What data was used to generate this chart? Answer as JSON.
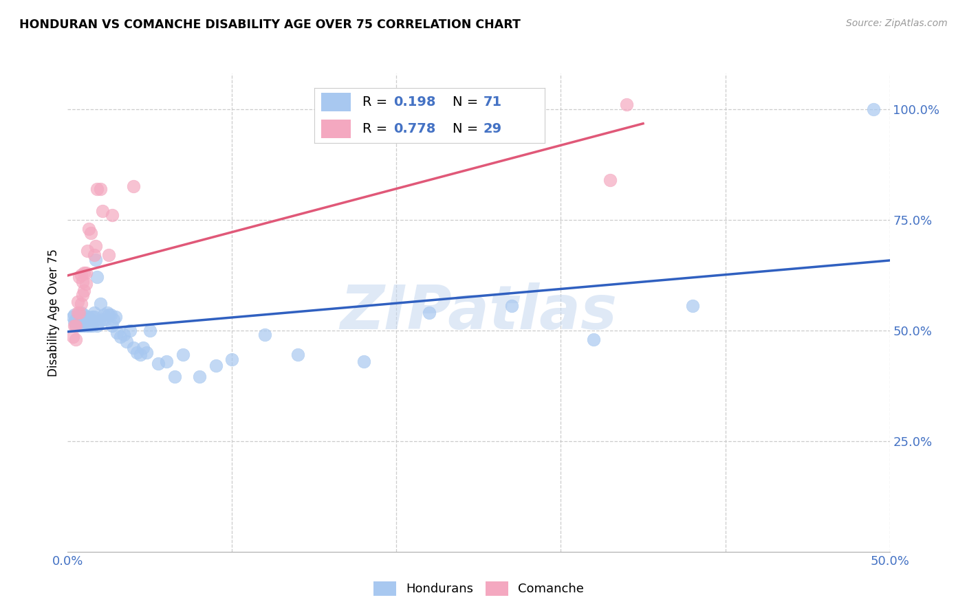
{
  "title": "HONDURAN VS COMANCHE DISABILITY AGE OVER 75 CORRELATION CHART",
  "source": "Source: ZipAtlas.com",
  "ylabel": "Disability Age Over 75",
  "xlim": [
    0.0,
    0.5
  ],
  "ylim": [
    0.0,
    1.08
  ],
  "color_honduran": "#a8c8f0",
  "color_comanche": "#f4a8c0",
  "color_line_honduran": "#3060c0",
  "color_line_comanche": "#e05878",
  "color_grid": "#cccccc",
  "color_tick": "#4472c4",
  "watermark": "ZIPatlas",
  "legend_r1": "0.198",
  "legend_n1": "71",
  "legend_r2": "0.778",
  "legend_n2": "29",
  "honduran_x": [
    0.003,
    0.004,
    0.004,
    0.005,
    0.005,
    0.006,
    0.006,
    0.007,
    0.007,
    0.007,
    0.008,
    0.008,
    0.008,
    0.009,
    0.009,
    0.009,
    0.01,
    0.01,
    0.01,
    0.011,
    0.011,
    0.012,
    0.012,
    0.013,
    0.013,
    0.014,
    0.014,
    0.015,
    0.015,
    0.016,
    0.016,
    0.017,
    0.018,
    0.018,
    0.019,
    0.02,
    0.021,
    0.022,
    0.023,
    0.024,
    0.025,
    0.026,
    0.027,
    0.028,
    0.029,
    0.03,
    0.032,
    0.034,
    0.036,
    0.038,
    0.04,
    0.042,
    0.044,
    0.046,
    0.048,
    0.05,
    0.055,
    0.06,
    0.065,
    0.07,
    0.08,
    0.09,
    0.1,
    0.12,
    0.14,
    0.18,
    0.22,
    0.27,
    0.32,
    0.38,
    0.49
  ],
  "honduran_y": [
    0.53,
    0.52,
    0.535,
    0.51,
    0.525,
    0.515,
    0.53,
    0.52,
    0.51,
    0.525,
    0.515,
    0.53,
    0.54,
    0.51,
    0.52,
    0.525,
    0.515,
    0.525,
    0.535,
    0.51,
    0.52,
    0.515,
    0.53,
    0.52,
    0.51,
    0.525,
    0.515,
    0.53,
    0.51,
    0.54,
    0.53,
    0.66,
    0.62,
    0.51,
    0.52,
    0.56,
    0.525,
    0.535,
    0.525,
    0.54,
    0.535,
    0.535,
    0.51,
    0.525,
    0.53,
    0.495,
    0.485,
    0.49,
    0.475,
    0.5,
    0.46,
    0.45,
    0.445,
    0.46,
    0.45,
    0.5,
    0.425,
    0.43,
    0.395,
    0.445,
    0.395,
    0.42,
    0.435,
    0.49,
    0.445,
    0.43,
    0.54,
    0.555,
    0.48,
    0.555,
    1.0
  ],
  "comanche_x": [
    0.003,
    0.004,
    0.005,
    0.005,
    0.006,
    0.006,
    0.007,
    0.007,
    0.008,
    0.008,
    0.009,
    0.009,
    0.01,
    0.01,
    0.011,
    0.011,
    0.012,
    0.013,
    0.014,
    0.016,
    0.017,
    0.018,
    0.02,
    0.021,
    0.025,
    0.027,
    0.04,
    0.33,
    0.34
  ],
  "comanche_y": [
    0.485,
    0.51,
    0.48,
    0.51,
    0.54,
    0.565,
    0.54,
    0.62,
    0.56,
    0.625,
    0.61,
    0.58,
    0.59,
    0.63,
    0.63,
    0.605,
    0.68,
    0.73,
    0.72,
    0.67,
    0.69,
    0.82,
    0.82,
    0.77,
    0.67,
    0.76,
    0.825,
    0.84,
    1.01
  ]
}
